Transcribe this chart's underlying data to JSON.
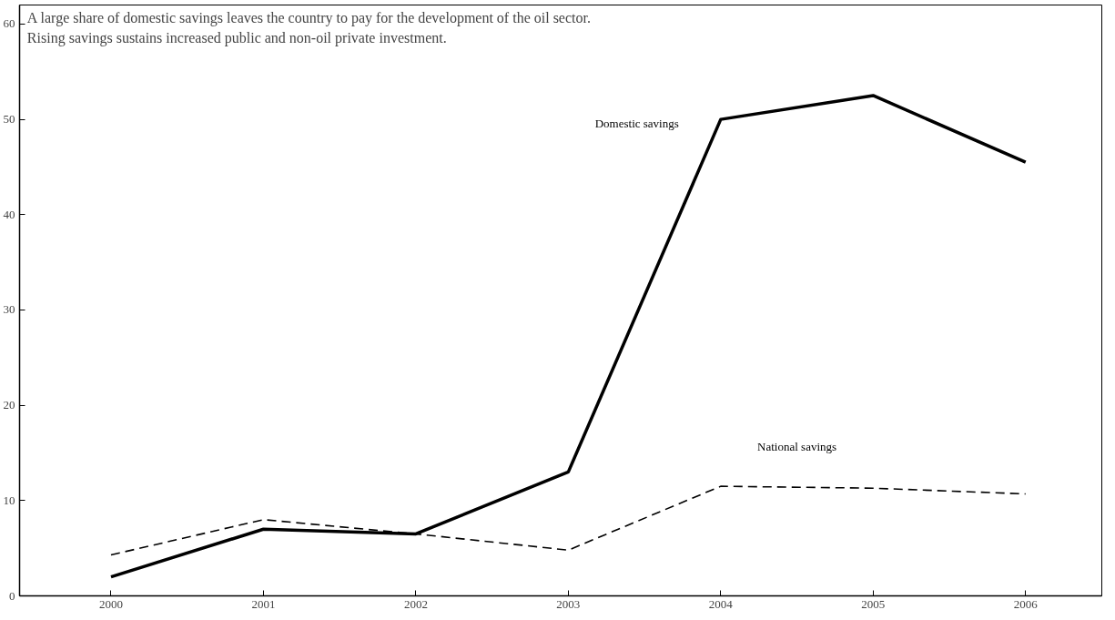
{
  "chart_data": {
    "type": "line",
    "title": "A large share of domestic savings leaves the country to pay for the development of the oil sector.",
    "subtitle": "Rising savings sustains increased public and non-oil private investment.",
    "categories": [
      "2000",
      "2001",
      "2002",
      "2003",
      "2004",
      "2005",
      "2006"
    ],
    "ylim": [
      0,
      62
    ],
    "yticks": [
      0,
      10,
      20,
      30,
      40,
      50,
      60
    ],
    "grid": false,
    "marker": "none",
    "series": [
      {
        "name": "Domestic savings",
        "color": "#000000",
        "line_style": "solid",
        "values": [
          2,
          7,
          6.5,
          13,
          50,
          52.5,
          45.5
        ]
      },
      {
        "name": "National savings",
        "color": "#000000",
        "line_style": "dashed",
        "values": [
          4.3,
          8,
          6.5,
          4.8,
          11.5,
          11.3,
          10.7
        ]
      }
    ]
  }
}
